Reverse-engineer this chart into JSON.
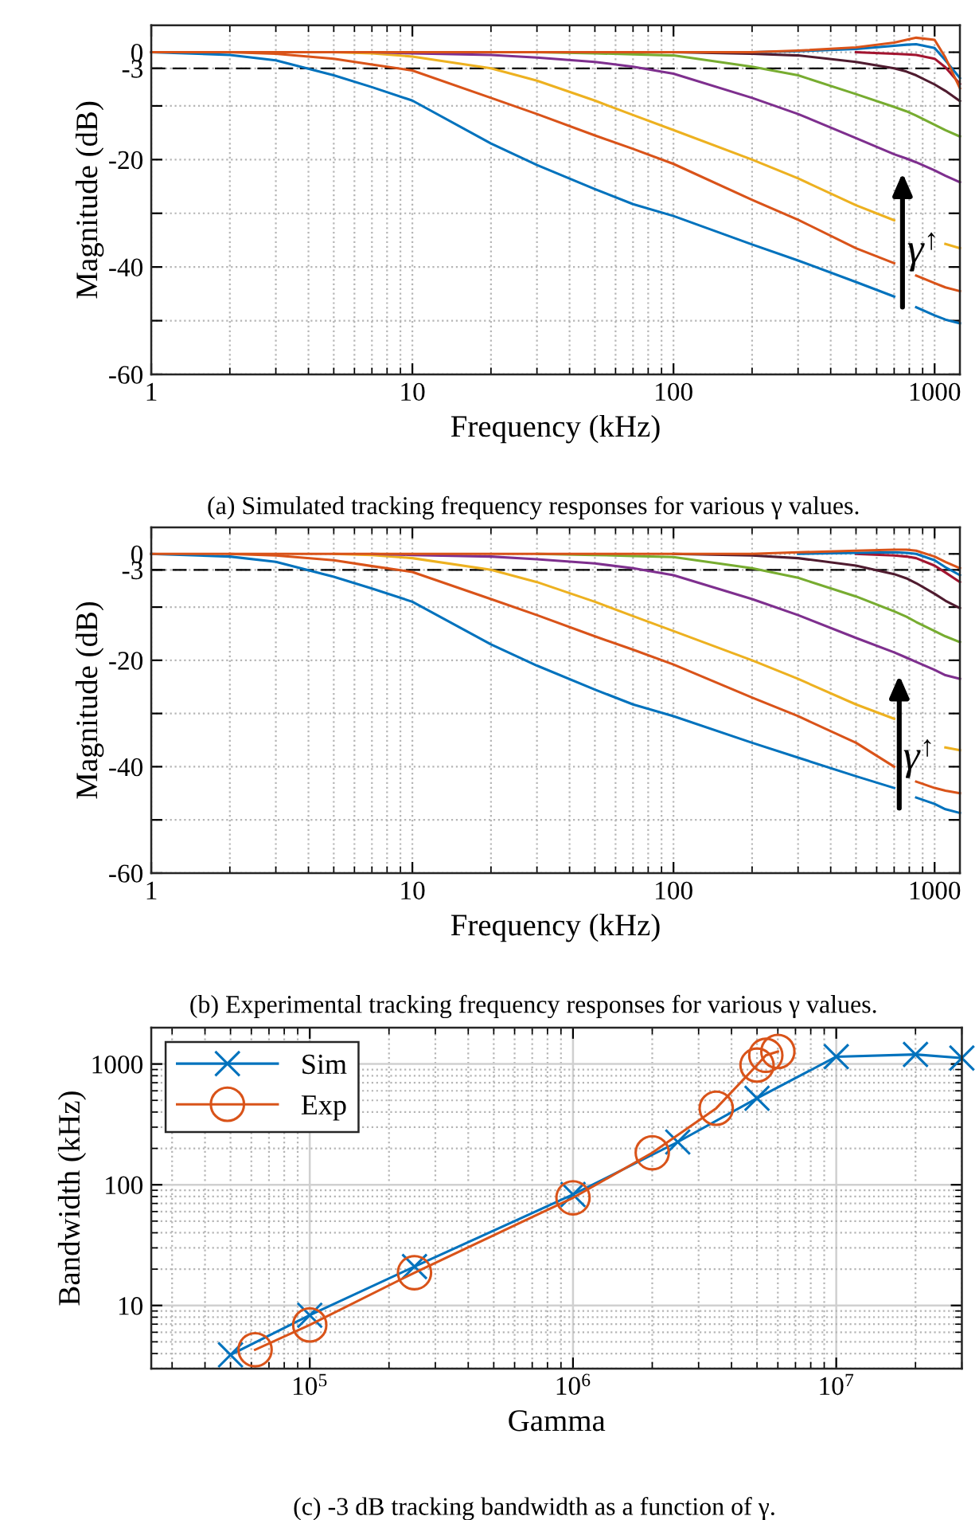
{
  "chart_data": [
    {
      "type": "line",
      "xlabel": "Frequency (kHz)",
      "ylabel": "Magnitude (dB)",
      "log": "x",
      "grid": true,
      "xlim": [
        1,
        1250
      ],
      "ylim": [
        -60,
        5
      ],
      "xticks": [
        1,
        10,
        100,
        1000
      ],
      "yticks": [
        0,
        -3,
        {
          "value": -10,
          "label": null
        },
        -20,
        {
          "value": -30,
          "label": null
        },
        -40,
        {
          "value": -50,
          "label": null
        },
        -60
      ],
      "ref_lines": [
        {
          "axis": "y",
          "value": -3,
          "color": "#000000",
          "line_style": "dashed"
        }
      ],
      "annotations": [
        "(a) Simulated tracking frequency responses for various γ values.",
        "γ$^{↑}$"
      ],
      "x": [
        1,
        2,
        3,
        5,
        7,
        10,
        20,
        30,
        50,
        70,
        100,
        200,
        300,
        500,
        700,
        780,
        850,
        1000,
        1100,
        1250
      ],
      "series": [
        {
          "color": "#0072bd",
          "values": [
            0,
            -0.5,
            -1.5,
            -4.3,
            -6.5,
            -9,
            -17,
            -21,
            -25.5,
            -28.3,
            -30.5,
            -35.8,
            -38.8,
            -42.8,
            -45.5,
            null,
            -47.5,
            -49,
            -49.8,
            -50.5
          ]
        },
        {
          "color": "#d95319",
          "values": [
            null,
            0,
            -0.3,
            -1.2,
            -2.3,
            -3.4,
            -8.5,
            -11.5,
            -15.5,
            -18,
            -20.8,
            -27.5,
            -31.2,
            -36.5,
            -39.3,
            null,
            -41.6,
            -43,
            -43.8,
            -44.5
          ]
        },
        {
          "color": "#edb120",
          "values": [
            null,
            null,
            null,
            0,
            -0.2,
            -0.8,
            -3,
            -5.3,
            -9,
            -11.7,
            -14.5,
            -20,
            -23.5,
            -28.5,
            -31.3,
            null,
            null,
            null,
            -35.7,
            -36.5
          ]
        },
        {
          "color": "#7e2f8e",
          "values": [
            null,
            null,
            null,
            null,
            0,
            -0.2,
            -0.5,
            -1,
            -1.8,
            -2.7,
            -4,
            -8.5,
            -11.5,
            -16,
            -19,
            -19.8,
            -20.5,
            -22,
            -23,
            -24.2
          ]
        },
        {
          "color": "#77ac30",
          "values": [
            null,
            null,
            null,
            null,
            null,
            null,
            null,
            0,
            -0.2,
            -0.4,
            -0.6,
            -2.7,
            -4.3,
            -7.8,
            -10.2,
            -11,
            -11.8,
            -13.5,
            -14.5,
            -15.7
          ]
        },
        {
          "color": "#4f1b2f",
          "values": [
            null,
            null,
            null,
            null,
            null,
            null,
            null,
            null,
            null,
            null,
            0,
            -0.3,
            -0.6,
            -1.8,
            -3,
            -3.6,
            -4.3,
            -6,
            -7.2,
            -9.1
          ]
        },
        {
          "color": "#a2142f",
          "values": [
            null,
            null,
            null,
            null,
            null,
            null,
            null,
            null,
            null,
            null,
            null,
            null,
            null,
            0,
            -0.3,
            -0.4,
            -0.5,
            -1.2,
            -2.8,
            -5.9
          ]
        },
        {
          "color": "#0072bd",
          "values": [
            null,
            null,
            null,
            null,
            null,
            null,
            null,
            null,
            null,
            null,
            null,
            0,
            0.2,
            0.6,
            1.2,
            1.4,
            1.5,
            0.8,
            -1.5,
            -4.8
          ]
        },
        {
          "color": "#d95319",
          "values": [
            0,
            0,
            0,
            0,
            0,
            0,
            0,
            0,
            0,
            0,
            0,
            0,
            0.3,
            0.9,
            1.8,
            2.3,
            2.7,
            2.3,
            -1,
            -6.7
          ]
        }
      ]
    },
    {
      "type": "line",
      "xlabel": "Frequency (kHz)",
      "ylabel": "Magnitude (dB)",
      "log": "x",
      "grid": true,
      "xlim": [
        1,
        1250
      ],
      "ylim": [
        -60,
        5
      ],
      "xticks": [
        1,
        10,
        100,
        1000
      ],
      "yticks": [
        0,
        -3,
        {
          "value": -10,
          "label": null
        },
        -20,
        {
          "value": -30,
          "label": null
        },
        -40,
        {
          "value": -50,
          "label": null
        },
        -60
      ],
      "ref_lines": [
        {
          "axis": "y",
          "value": -3,
          "color": "#000000",
          "line_style": "dashed"
        }
      ],
      "annotations": [
        "(b) Experimental tracking frequency responses for various γ values.",
        "γ$^{↑}$"
      ],
      "x": [
        1,
        2,
        3,
        5,
        7,
        10,
        20,
        30,
        50,
        70,
        100,
        200,
        300,
        500,
        700,
        780,
        850,
        1000,
        1100,
        1250
      ],
      "series": [
        {
          "color": "#0072bd",
          "values": [
            0,
            -0.5,
            -1.5,
            -4.3,
            -6.5,
            -9,
            -17,
            -21,
            -25.5,
            -28.3,
            -30.5,
            -35.5,
            -38.3,
            -41.8,
            -44,
            null,
            -45.8,
            -47,
            -48,
            -48.7
          ]
        },
        {
          "color": "#d95319",
          "values": [
            null,
            0,
            -0.3,
            -1.2,
            -2.3,
            -3.4,
            -8.5,
            -11.5,
            -15.5,
            -18,
            -20.8,
            -27,
            -30.5,
            -35.5,
            -40,
            null,
            -42.8,
            -44,
            -44.5,
            -45
          ]
        },
        {
          "color": "#edb120",
          "values": [
            null,
            null,
            null,
            0,
            -0.2,
            -0.8,
            -3,
            -5.3,
            -9,
            -11.7,
            -14.5,
            -20,
            -23.5,
            -28.3,
            -31,
            null,
            null,
            null,
            -36.4,
            -36.9
          ]
        },
        {
          "color": "#7e2f8e",
          "values": [
            null,
            null,
            null,
            null,
            0,
            -0.2,
            -0.5,
            -1,
            -1.8,
            -2.7,
            -4,
            -8.5,
            -11.5,
            -15.8,
            -18.5,
            -19.5,
            -20.3,
            -21.8,
            -22.8,
            -23.5
          ]
        },
        {
          "color": "#77ac30",
          "values": [
            null,
            null,
            null,
            null,
            null,
            null,
            null,
            0,
            -0.2,
            -0.4,
            -0.6,
            -2.7,
            -4.5,
            -8,
            -10.8,
            -11.8,
            -12.8,
            -14.5,
            -15.5,
            -16.6
          ]
        },
        {
          "color": "#4f1b2f",
          "values": [
            null,
            null,
            null,
            null,
            null,
            null,
            null,
            null,
            null,
            null,
            0,
            -0.3,
            -0.8,
            -2.2,
            -3.8,
            -4.6,
            -5.5,
            -7.5,
            -8.8,
            -10.2
          ]
        },
        {
          "color": "#a2142f",
          "values": [
            null,
            null,
            null,
            null,
            null,
            null,
            null,
            null,
            null,
            null,
            null,
            null,
            null,
            0,
            -0.3,
            -0.5,
            -0.8,
            -2.2,
            -3.5,
            -5.3
          ]
        },
        {
          "color": "#0072bd",
          "values": [
            null,
            null,
            null,
            null,
            null,
            null,
            null,
            null,
            null,
            null,
            null,
            null,
            0,
            0.2,
            0.3,
            0.2,
            0,
            -1.2,
            -2.5,
            -4
          ]
        },
        {
          "color": "#d95319",
          "values": [
            0,
            0,
            0,
            0,
            0,
            0,
            0,
            0,
            0,
            0,
            0,
            0,
            0.3,
            0.6,
            0.8,
            0.8,
            0.6,
            -0.5,
            -1.5,
            -2.7
          ]
        }
      ]
    },
    {
      "type": "line",
      "xlabel": "Gamma",
      "ylabel": "Bandwidth (kHz)",
      "log": "xy",
      "grid": true,
      "legend": "top left",
      "xlim": [
        25000,
        30000000
      ],
      "ylim": [
        3,
        2000
      ],
      "xticks": [
        {
          "value": 100000,
          "label": "10$^{5}$"
        },
        {
          "value": 1000000,
          "label": "10$^{6}$"
        },
        {
          "value": 10000000,
          "label": "10$^{7}$"
        }
      ],
      "yticks": [
        10,
        100,
        1000
      ],
      "annotations": [
        "(c) -3 dB tracking bandwidth as a function of γ."
      ],
      "series": [
        {
          "name": "Sim",
          "color": "#0072bd",
          "marker": "cross",
          "x": [
            50000,
            100000,
            250000,
            1000000,
            2500000,
            5000000,
            10000000,
            20000000,
            30000000
          ],
          "values": [
            3.9,
            8.3,
            21,
            83,
            226,
            520,
            1150,
            1200,
            1120
          ]
        },
        {
          "name": "Exp",
          "color": "#d95319",
          "marker": "circle",
          "x": [
            62000,
            100000,
            250000,
            1000000,
            2000000,
            3500000,
            5000000,
            5400000,
            6000000
          ],
          "values": [
            4.3,
            6.9,
            18.7,
            78,
            184,
            430,
            980,
            1180,
            1270
          ]
        }
      ]
    }
  ]
}
